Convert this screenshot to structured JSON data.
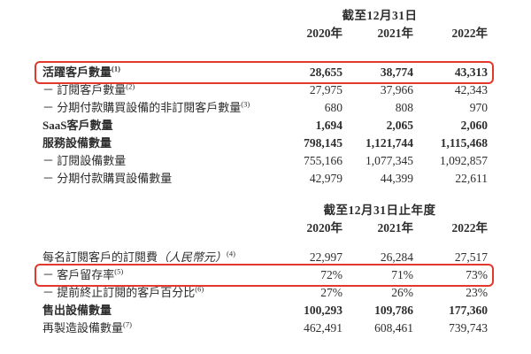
{
  "colors": {
    "highlight_red": "#e2392c",
    "text": "#2d2d2d",
    "background": "#ffffff"
  },
  "tables": [
    {
      "name": "customer-and-device-metrics",
      "period_header": "截至12月31日",
      "years": [
        "2020年",
        "2021年",
        "2022年"
      ],
      "rows": [
        {
          "label": "活躍客戶數量",
          "paren": "",
          "sup": "(1)",
          "values": [
            "28,655",
            "38,774",
            "43,313"
          ],
          "bold": true,
          "highlight": true
        },
        {
          "label": "－ 訂閱客戶數量",
          "paren": "",
          "sup": "(2)",
          "values": [
            "27,975",
            "37,966",
            "42,343"
          ],
          "bold": false,
          "highlight": false
        },
        {
          "label": "－ 分期付款購買設備的非訂閱客戶數量",
          "paren": "",
          "sup": "(3)",
          "values": [
            "680",
            "808",
            "970"
          ],
          "bold": false,
          "highlight": false
        },
        {
          "label": "SaaS客戶數量",
          "paren": "",
          "sup": "",
          "values": [
            "1,694",
            "2,065",
            "2,060"
          ],
          "bold": true,
          "highlight": false
        },
        {
          "label": "服務設備數量",
          "paren": "",
          "sup": "",
          "values": [
            "798,145",
            "1,121,744",
            "1,115,468"
          ],
          "bold": true,
          "highlight": false
        },
        {
          "label": "－ 訂閱設備數量",
          "paren": "",
          "sup": "",
          "values": [
            "755,166",
            "1,077,345",
            "1,092,857"
          ],
          "bold": false,
          "highlight": false
        },
        {
          "label": "－ 分期付款購買設備數量",
          "paren": "",
          "sup": "",
          "values": [
            "42,979",
            "44,399",
            "22,611"
          ],
          "bold": false,
          "highlight": false
        }
      ]
    },
    {
      "name": "subscription-metrics",
      "period_header": "截至12月31日止年度",
      "years": [
        "2020年",
        "2021年",
        "2022年"
      ],
      "rows": [
        {
          "label": "每名訂閱客戶的訂閱費",
          "paren": "（人民幣元）",
          "sup": "(4)",
          "values": [
            "22,997",
            "26,284",
            "27,517"
          ],
          "bold": false,
          "highlight": false
        },
        {
          "label": "－ 客戶留存率",
          "paren": "",
          "sup": "(5)",
          "values": [
            "72%",
            "71%",
            "73%"
          ],
          "bold": false,
          "highlight": true
        },
        {
          "label": "－ 提前終止訂閱的客戶百分比",
          "paren": "",
          "sup": "(6)",
          "values": [
            "27%",
            "26%",
            "23%"
          ],
          "bold": false,
          "highlight": false
        },
        {
          "label": "售出設備數量",
          "paren": "",
          "sup": "",
          "values": [
            "100,293",
            "109,786",
            "177,360"
          ],
          "bold": true,
          "highlight": false
        },
        {
          "label": "再製造設備數量",
          "paren": "",
          "sup": "(7)",
          "values": [
            "462,491",
            "608,461",
            "739,743"
          ],
          "bold": false,
          "highlight": false
        }
      ]
    }
  ]
}
